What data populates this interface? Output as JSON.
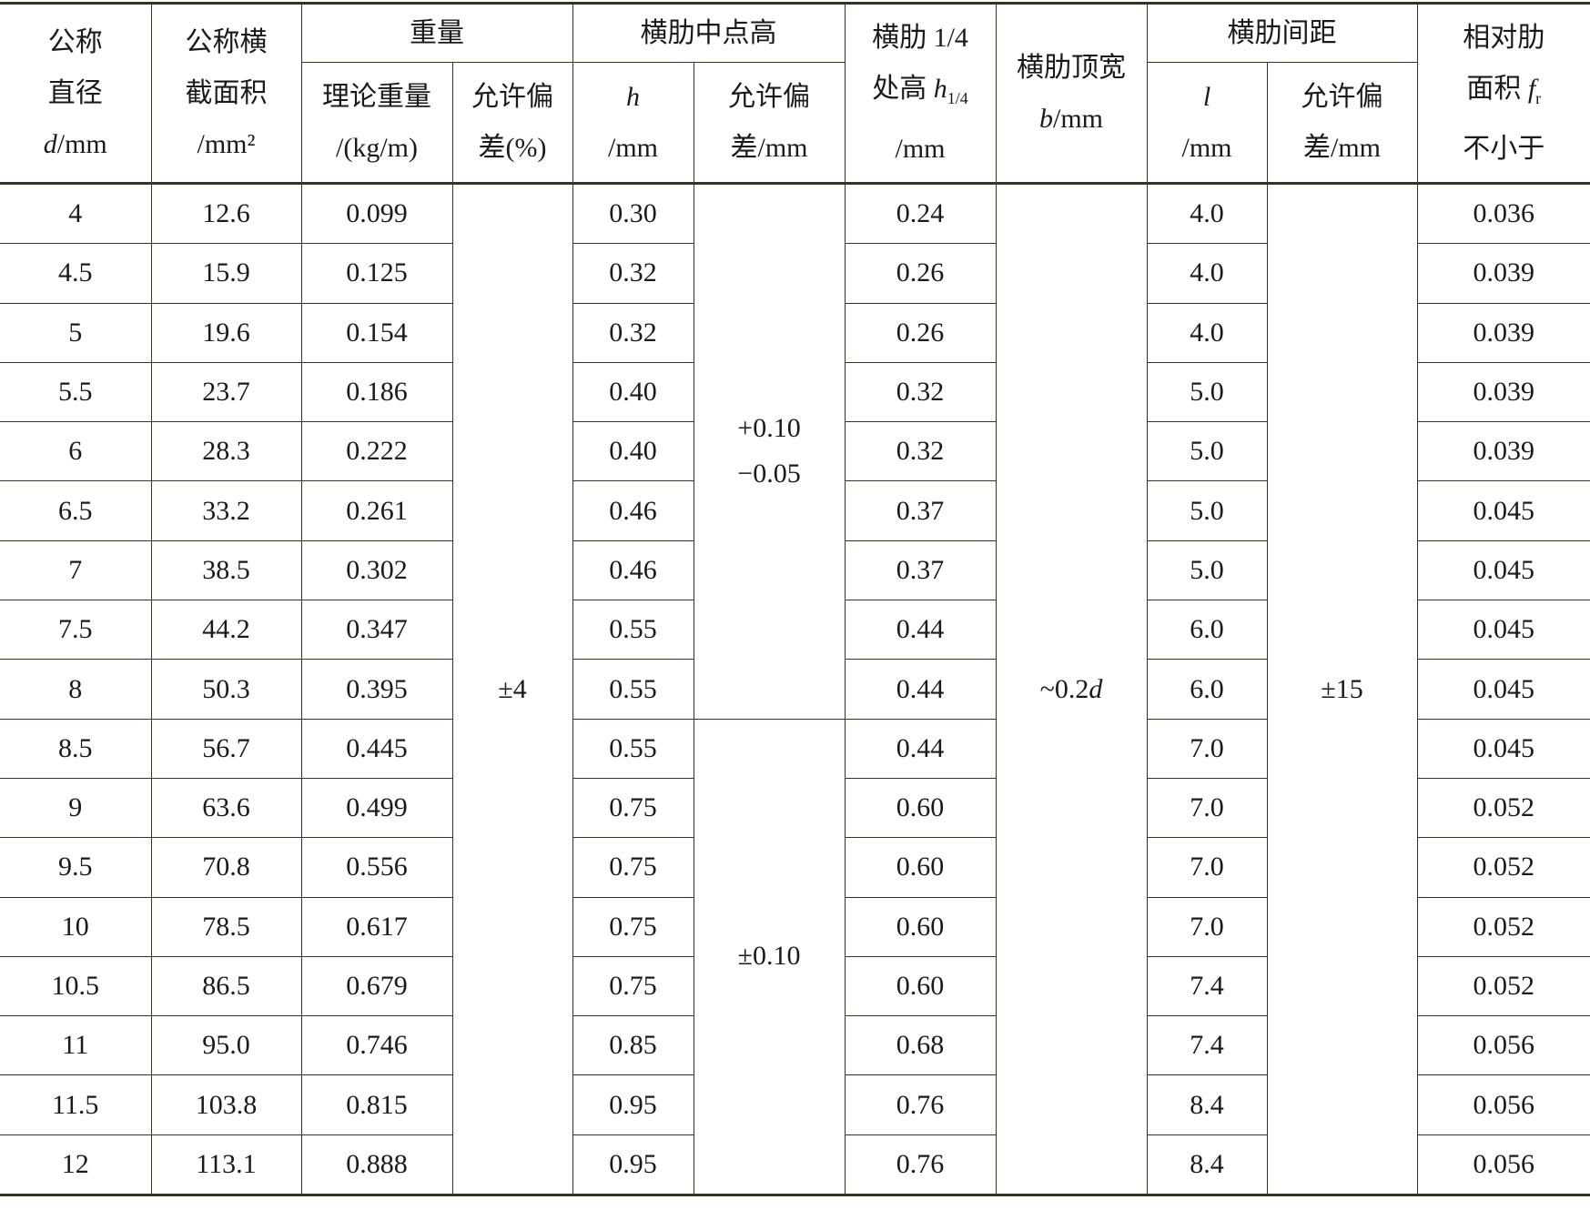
{
  "header": {
    "diameter": [
      "公称",
      "直径",
      "d/mm"
    ],
    "area": [
      "公称横",
      "截面积",
      "/mm²"
    ],
    "weight_group": "重量",
    "weight_theory": [
      "理论重量",
      "/(kg/m)"
    ],
    "weight_tol": [
      "允许偏",
      "差(%)"
    ],
    "mid_height_group": "横肋中点高",
    "mid_h": [
      "h",
      "/mm"
    ],
    "mid_tol": [
      "允许偏",
      "差/mm"
    ],
    "quarter_height": [
      "横肋 1/4",
      "处高 h1/4",
      "/mm"
    ],
    "top_width": [
      "横肋顶宽",
      "b/mm"
    ],
    "spacing_group": "横肋间距",
    "spacing_l": [
      "l",
      "/mm"
    ],
    "spacing_tol": [
      "允许偏",
      "差/mm"
    ],
    "rel_area": [
      "相对肋",
      "面积 fr",
      "不小于"
    ]
  },
  "merged": {
    "weight_tol": "±4",
    "mid_tol_upper": [
      "+0.10",
      "−0.05"
    ],
    "mid_tol_lower": "±0.10",
    "top_width": "~0.2d",
    "spacing_tol": "±15"
  },
  "rows": [
    [
      "4",
      "12.6",
      "0.099",
      "0.30",
      "0.24",
      "4.0",
      "0.036"
    ],
    [
      "4.5",
      "15.9",
      "0.125",
      "0.32",
      "0.26",
      "4.0",
      "0.039"
    ],
    [
      "5",
      "19.6",
      "0.154",
      "0.32",
      "0.26",
      "4.0",
      "0.039"
    ],
    [
      "5.5",
      "23.7",
      "0.186",
      "0.40",
      "0.32",
      "5.0",
      "0.039"
    ],
    [
      "6",
      "28.3",
      "0.222",
      "0.40",
      "0.32",
      "5.0",
      "0.039"
    ],
    [
      "6.5",
      "33.2",
      "0.261",
      "0.46",
      "0.37",
      "5.0",
      "0.045"
    ],
    [
      "7",
      "38.5",
      "0.302",
      "0.46",
      "0.37",
      "5.0",
      "0.045"
    ],
    [
      "7.5",
      "44.2",
      "0.347",
      "0.55",
      "0.44",
      "6.0",
      "0.045"
    ],
    [
      "8",
      "50.3",
      "0.395",
      "0.55",
      "0.44",
      "6.0",
      "0.045"
    ],
    [
      "8.5",
      "56.7",
      "0.445",
      "0.55",
      "0.44",
      "7.0",
      "0.045"
    ],
    [
      "9",
      "63.6",
      "0.499",
      "0.75",
      "0.60",
      "7.0",
      "0.052"
    ],
    [
      "9.5",
      "70.8",
      "0.556",
      "0.75",
      "0.60",
      "7.0",
      "0.052"
    ],
    [
      "10",
      "78.5",
      "0.617",
      "0.75",
      "0.60",
      "7.0",
      "0.052"
    ],
    [
      "10.5",
      "86.5",
      "0.679",
      "0.75",
      "0.60",
      "7.4",
      "0.052"
    ],
    [
      "11",
      "95.0",
      "0.746",
      "0.85",
      "0.68",
      "7.4",
      "0.056"
    ],
    [
      "11.5",
      "103.8",
      "0.815",
      "0.95",
      "0.76",
      "8.4",
      "0.056"
    ],
    [
      "12",
      "113.1",
      "0.888",
      "0.95",
      "0.76",
      "8.4",
      "0.056"
    ]
  ]
}
